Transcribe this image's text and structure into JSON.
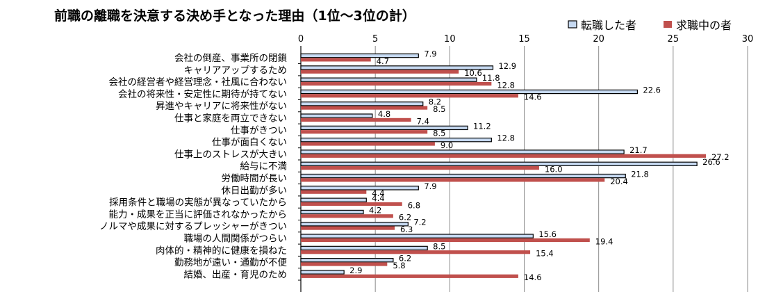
{
  "chart_data": {
    "type": "bar",
    "orientation": "horizontal",
    "title": "前職の離職を決意する決め手となった理由（1位～3位の計）",
    "xlabel": "",
    "ylabel": "",
    "xlim": [
      0,
      30
    ],
    "ticks": [
      0,
      5,
      10,
      15,
      20,
      25,
      30
    ],
    "grid": true,
    "legend_position": "top-right",
    "categories": [
      "会社の倒産、事業所の閉鎖",
      "キャリアアップするため",
      "会社の経営者や経営理念・社風に合わない",
      "会社の将来性・安定性に期待が持てない",
      "昇進やキャリアに将来性がない",
      "仕事と家庭を両立できない",
      "仕事がきつい",
      "仕事が面白くない",
      "仕事上のストレスが大きい",
      "給与に不満",
      "労働時間が長い",
      "休日出勤が多い",
      "採用条件と職場の実態が異なっていたから",
      "能力・成果を正当に評価されなかったから",
      "ノルマや成果に対するプレッシャーがきつい",
      "職場の人間関係がつらい",
      "肉体的・精神的に健康を損ねた",
      "勤務地が遠い・通勤が不便",
      "結婚、出産・育児のため"
    ],
    "series": [
      {
        "name": "転職した者",
        "color": "#c6d9f1",
        "values": [
          7.9,
          12.9,
          11.8,
          22.6,
          8.2,
          4.8,
          11.2,
          12.8,
          21.7,
          26.6,
          21.8,
          7.9,
          4.4,
          4.2,
          7.2,
          15.6,
          8.5,
          6.2,
          2.9
        ]
      },
      {
        "name": "求職中の者",
        "color": "#c0504d",
        "values": [
          4.7,
          10.6,
          12.8,
          14.6,
          8.5,
          7.4,
          8.5,
          9.0,
          27.2,
          16.0,
          20.4,
          4.4,
          6.8,
          6.2,
          6.3,
          19.4,
          15.4,
          5.8,
          14.6
        ]
      }
    ],
    "value_labels": [
      [
        "7.9",
        "12.9",
        "11.8",
        "22.6",
        "8.2",
        "4.8",
        "11.2",
        "12.8",
        "21.7",
        "26.6",
        "21.8",
        "7.9",
        "4.4",
        "4.2",
        "7.2",
        "15.6",
        "8.5",
        "6.2",
        "2.9"
      ],
      [
        "4.7",
        "10.6",
        "12.8",
        "14.6",
        "8.5",
        "7.4",
        "8.5",
        "9.0",
        "27.2",
        "16.0",
        "20.4",
        "4.4",
        "6.8",
        "6.2",
        "6.3",
        "19.4",
        "15.4",
        "5.8",
        "14.6"
      ]
    ]
  }
}
